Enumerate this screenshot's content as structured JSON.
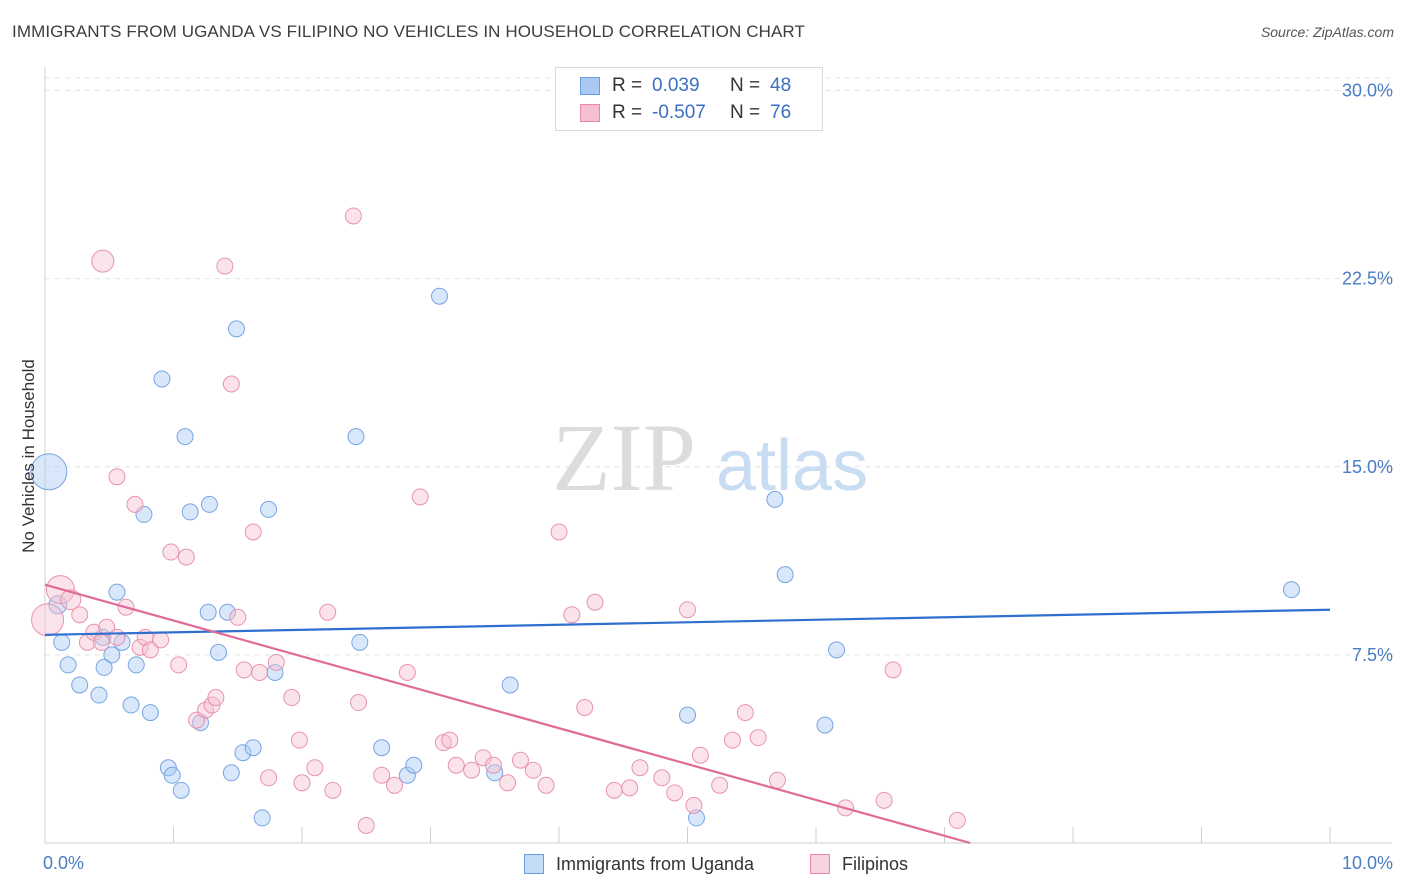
{
  "title": "IMMIGRANTS FROM UGANDA VS FILIPINO NO VEHICLES IN HOUSEHOLD CORRELATION CHART",
  "source": "Source: ZipAtlas.com",
  "watermark": {
    "zip": "ZIP",
    "atlas": "atlas"
  },
  "legend": {
    "rows": [
      {
        "r_label": "R =",
        "r_value": "0.039",
        "n_label": "N =",
        "n_value": "48",
        "color": "#a9c9f2",
        "edge": "#6b9be0"
      },
      {
        "r_label": "R =",
        "r_value": "-0.507",
        "n_label": "N =",
        "n_value": "76",
        "color": "#f7c0d0",
        "edge": "#e68aa8"
      }
    ]
  },
  "bottom_legend": [
    {
      "label": "Immigrants from Uganda",
      "color": "#c5dcf7",
      "edge": "#6b9be0"
    },
    {
      "label": "Filipinos",
      "color": "#f9d3df",
      "edge": "#e68aa8"
    }
  ],
  "chart_data": {
    "type": "scatter",
    "title": "IMMIGRANTS FROM UGANDA VS FILIPINO NO VEHICLES IN HOUSEHOLD CORRELATION CHART",
    "xlabel": "",
    "ylabel": "No Vehicles in Household",
    "xlim": [
      0,
      10
    ],
    "ylim": [
      0,
      30.5
    ],
    "x_tick_labels": [
      "0.0%",
      "10.0%"
    ],
    "y_ticks": [
      7.5,
      15.0,
      22.5,
      30.0
    ],
    "y_tick_labels": [
      "7.5%",
      "15.0%",
      "22.5%",
      "30.0%"
    ],
    "grid": true,
    "legend_position": "top-center",
    "series": [
      {
        "name": "Immigrants from Uganda",
        "color": "#a9c9f2",
        "edge": "#6b9be0",
        "trend": {
          "x": [
            0,
            10
          ],
          "y": [
            8.3,
            9.3
          ],
          "color": "#2f6fd0"
        },
        "points": [
          {
            "x": 0.03,
            "y": 14.8,
            "s": 18
          },
          {
            "x": 0.1,
            "y": 9.5,
            "s": 9
          },
          {
            "x": 0.13,
            "y": 8.0,
            "s": 8
          },
          {
            "x": 0.18,
            "y": 7.1,
            "s": 8
          },
          {
            "x": 0.27,
            "y": 6.3,
            "s": 8
          },
          {
            "x": 0.42,
            "y": 5.9,
            "s": 8
          },
          {
            "x": 0.45,
            "y": 8.2,
            "s": 8
          },
          {
            "x": 0.46,
            "y": 7.0,
            "s": 8
          },
          {
            "x": 0.52,
            "y": 7.5,
            "s": 8
          },
          {
            "x": 0.56,
            "y": 10.0,
            "s": 8
          },
          {
            "x": 0.6,
            "y": 8.0,
            "s": 8
          },
          {
            "x": 0.67,
            "y": 5.5,
            "s": 8
          },
          {
            "x": 0.71,
            "y": 7.1,
            "s": 8
          },
          {
            "x": 0.77,
            "y": 13.1,
            "s": 8
          },
          {
            "x": 0.82,
            "y": 5.2,
            "s": 8
          },
          {
            "x": 0.91,
            "y": 18.5,
            "s": 8
          },
          {
            "x": 0.96,
            "y": 3.0,
            "s": 8
          },
          {
            "x": 0.99,
            "y": 2.7,
            "s": 8
          },
          {
            "x": 1.06,
            "y": 2.1,
            "s": 8
          },
          {
            "x": 1.09,
            "y": 16.2,
            "s": 8
          },
          {
            "x": 1.13,
            "y": 13.2,
            "s": 8
          },
          {
            "x": 1.21,
            "y": 4.8,
            "s": 8
          },
          {
            "x": 1.27,
            "y": 9.2,
            "s": 8
          },
          {
            "x": 1.28,
            "y": 13.5,
            "s": 8
          },
          {
            "x": 1.35,
            "y": 7.6,
            "s": 8
          },
          {
            "x": 1.42,
            "y": 9.2,
            "s": 8
          },
          {
            "x": 1.45,
            "y": 2.8,
            "s": 8
          },
          {
            "x": 1.49,
            "y": 20.5,
            "s": 8
          },
          {
            "x": 1.54,
            "y": 3.6,
            "s": 8
          },
          {
            "x": 1.62,
            "y": 3.8,
            "s": 8
          },
          {
            "x": 1.69,
            "y": 1.0,
            "s": 8
          },
          {
            "x": 1.74,
            "y": 13.3,
            "s": 8
          },
          {
            "x": 1.79,
            "y": 6.8,
            "s": 8
          },
          {
            "x": 2.42,
            "y": 16.2,
            "s": 8
          },
          {
            "x": 2.45,
            "y": 8.0,
            "s": 8
          },
          {
            "x": 2.62,
            "y": 3.8,
            "s": 8
          },
          {
            "x": 2.82,
            "y": 2.7,
            "s": 8
          },
          {
            "x": 2.87,
            "y": 3.1,
            "s": 8
          },
          {
            "x": 3.07,
            "y": 21.8,
            "s": 8
          },
          {
            "x": 3.5,
            "y": 2.8,
            "s": 8
          },
          {
            "x": 3.62,
            "y": 6.3,
            "s": 8
          },
          {
            "x": 5.0,
            "y": 5.1,
            "s": 8
          },
          {
            "x": 5.07,
            "y": 1.0,
            "s": 8
          },
          {
            "x": 5.68,
            "y": 13.7,
            "s": 8
          },
          {
            "x": 5.76,
            "y": 10.7,
            "s": 8
          },
          {
            "x": 6.07,
            "y": 4.7,
            "s": 8
          },
          {
            "x": 6.16,
            "y": 7.7,
            "s": 8
          },
          {
            "x": 9.7,
            "y": 10.1,
            "s": 8
          }
        ]
      },
      {
        "name": "Filipinos",
        "color": "#f7c0d0",
        "edge": "#e68aa8",
        "trend": {
          "x": [
            0,
            7.2
          ],
          "y": [
            10.3,
            0
          ],
          "color": "#df6b96"
        },
        "points": [
          {
            "x": 0.02,
            "y": 8.9,
            "s": 16
          },
          {
            "x": 0.12,
            "y": 10.1,
            "s": 14
          },
          {
            "x": 0.2,
            "y": 9.7,
            "s": 10
          },
          {
            "x": 0.27,
            "y": 9.1,
            "s": 8
          },
          {
            "x": 0.33,
            "y": 8.0,
            "s": 8
          },
          {
            "x": 0.38,
            "y": 8.4,
            "s": 8
          },
          {
            "x": 0.44,
            "y": 8.0,
            "s": 8
          },
          {
            "x": 0.45,
            "y": 23.2,
            "s": 11
          },
          {
            "x": 0.48,
            "y": 8.6,
            "s": 8
          },
          {
            "x": 0.56,
            "y": 8.2,
            "s": 8
          },
          {
            "x": 0.56,
            "y": 14.6,
            "s": 8
          },
          {
            "x": 0.63,
            "y": 9.4,
            "s": 8
          },
          {
            "x": 0.7,
            "y": 13.5,
            "s": 8
          },
          {
            "x": 0.74,
            "y": 7.8,
            "s": 8
          },
          {
            "x": 0.78,
            "y": 8.2,
            "s": 8
          },
          {
            "x": 0.82,
            "y": 7.7,
            "s": 8
          },
          {
            "x": 0.9,
            "y": 8.1,
            "s": 8
          },
          {
            "x": 0.98,
            "y": 11.6,
            "s": 8
          },
          {
            "x": 1.04,
            "y": 7.1,
            "s": 8
          },
          {
            "x": 1.1,
            "y": 11.4,
            "s": 8
          },
          {
            "x": 1.18,
            "y": 4.9,
            "s": 8
          },
          {
            "x": 1.25,
            "y": 5.3,
            "s": 8
          },
          {
            "x": 1.3,
            "y": 5.5,
            "s": 8
          },
          {
            "x": 1.33,
            "y": 5.8,
            "s": 8
          },
          {
            "x": 1.4,
            "y": 23.0,
            "s": 8
          },
          {
            "x": 1.45,
            "y": 18.3,
            "s": 8
          },
          {
            "x": 1.5,
            "y": 9.0,
            "s": 8
          },
          {
            "x": 1.55,
            "y": 6.9,
            "s": 8
          },
          {
            "x": 1.62,
            "y": 12.4,
            "s": 8
          },
          {
            "x": 1.67,
            "y": 6.8,
            "s": 8
          },
          {
            "x": 1.74,
            "y": 2.6,
            "s": 8
          },
          {
            "x": 1.8,
            "y": 7.2,
            "s": 8
          },
          {
            "x": 1.92,
            "y": 5.8,
            "s": 8
          },
          {
            "x": 1.98,
            "y": 4.1,
            "s": 8
          },
          {
            "x": 2.0,
            "y": 2.4,
            "s": 8
          },
          {
            "x": 2.1,
            "y": 3.0,
            "s": 8
          },
          {
            "x": 2.2,
            "y": 9.2,
            "s": 8
          },
          {
            "x": 2.24,
            "y": 2.1,
            "s": 8
          },
          {
            "x": 2.4,
            "y": 25.0,
            "s": 8
          },
          {
            "x": 2.44,
            "y": 5.6,
            "s": 8
          },
          {
            "x": 2.5,
            "y": 0.7,
            "s": 8
          },
          {
            "x": 2.62,
            "y": 2.7,
            "s": 8
          },
          {
            "x": 2.72,
            "y": 2.3,
            "s": 8
          },
          {
            "x": 2.82,
            "y": 6.8,
            "s": 8
          },
          {
            "x": 2.92,
            "y": 13.8,
            "s": 8
          },
          {
            "x": 3.1,
            "y": 4.0,
            "s": 8
          },
          {
            "x": 3.15,
            "y": 4.1,
            "s": 8
          },
          {
            "x": 3.2,
            "y": 3.1,
            "s": 8
          },
          {
            "x": 3.32,
            "y": 2.9,
            "s": 8
          },
          {
            "x": 3.41,
            "y": 3.4,
            "s": 8
          },
          {
            "x": 3.49,
            "y": 3.1,
            "s": 8
          },
          {
            "x": 3.6,
            "y": 2.4,
            "s": 8
          },
          {
            "x": 3.7,
            "y": 3.3,
            "s": 8
          },
          {
            "x": 3.8,
            "y": 2.9,
            "s": 8
          },
          {
            "x": 3.9,
            "y": 2.3,
            "s": 8
          },
          {
            "x": 4.0,
            "y": 12.4,
            "s": 8
          },
          {
            "x": 4.1,
            "y": 9.1,
            "s": 8
          },
          {
            "x": 4.2,
            "y": 5.4,
            "s": 8
          },
          {
            "x": 4.28,
            "y": 9.6,
            "s": 8
          },
          {
            "x": 4.43,
            "y": 2.1,
            "s": 8
          },
          {
            "x": 4.55,
            "y": 2.2,
            "s": 8
          },
          {
            "x": 4.63,
            "y": 3.0,
            "s": 8
          },
          {
            "x": 4.8,
            "y": 2.6,
            "s": 8
          },
          {
            "x": 4.9,
            "y": 2.0,
            "s": 8
          },
          {
            "x": 5.0,
            "y": 9.3,
            "s": 8
          },
          {
            "x": 5.05,
            "y": 1.5,
            "s": 8
          },
          {
            "x": 5.1,
            "y": 3.5,
            "s": 8
          },
          {
            "x": 5.25,
            "y": 2.3,
            "s": 8
          },
          {
            "x": 5.35,
            "y": 4.1,
            "s": 8
          },
          {
            "x": 5.45,
            "y": 5.2,
            "s": 8
          },
          {
            "x": 5.55,
            "y": 4.2,
            "s": 8
          },
          {
            "x": 5.7,
            "y": 2.5,
            "s": 8
          },
          {
            "x": 6.23,
            "y": 1.4,
            "s": 8
          },
          {
            "x": 6.53,
            "y": 1.7,
            "s": 8
          },
          {
            "x": 6.6,
            "y": 6.9,
            "s": 8
          },
          {
            "x": 7.1,
            "y": 0.9,
            "s": 8
          }
        ]
      }
    ]
  }
}
